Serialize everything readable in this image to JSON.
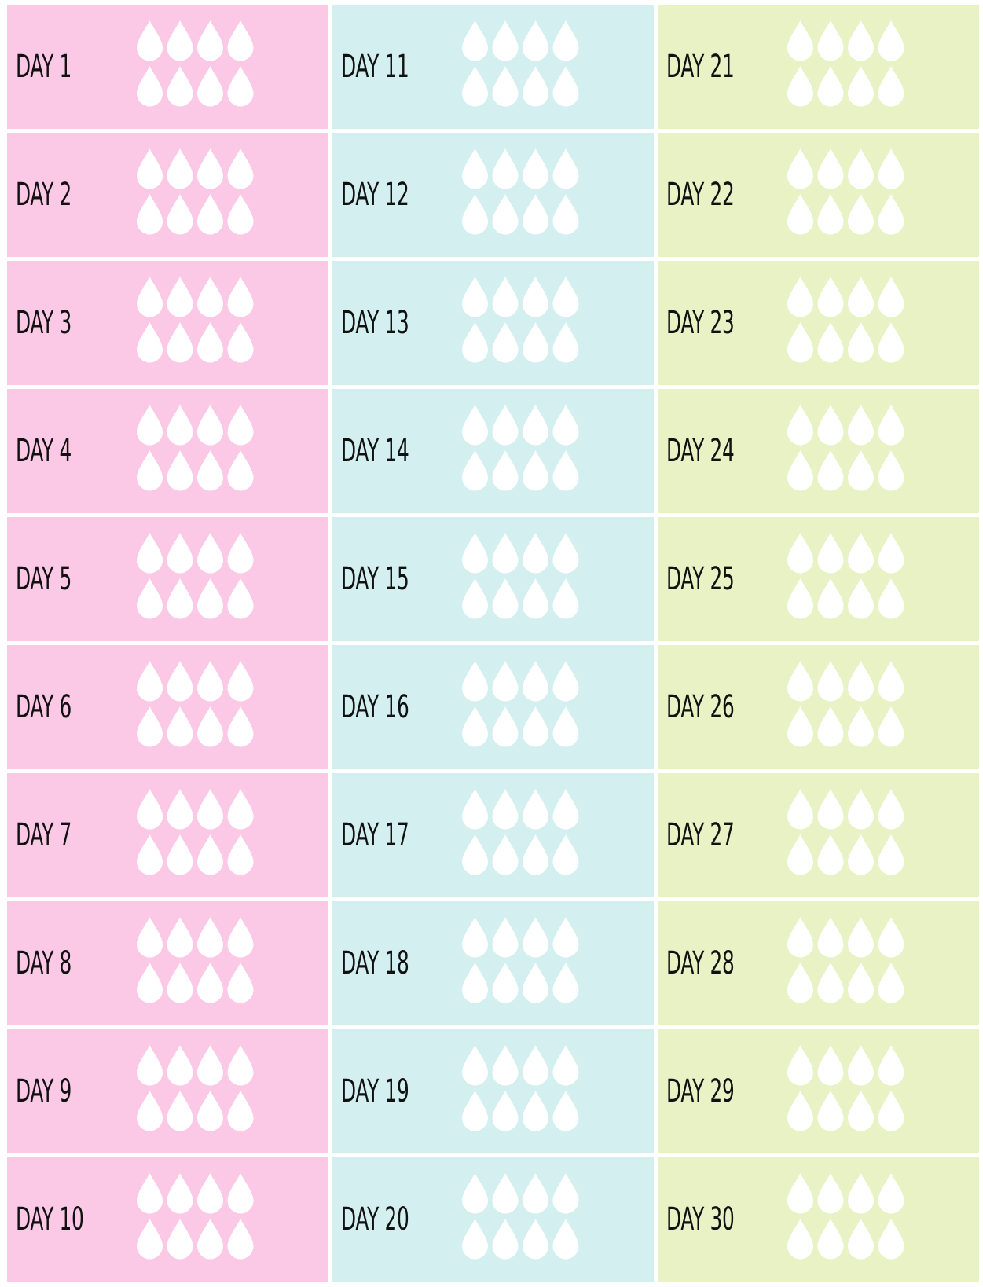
{
  "columns": [
    {
      "color": "#fbc8e5",
      "days": [
        "DAY 1",
        "DAY 2",
        "DAY 3",
        "DAY 4",
        "DAY 5",
        "DAY 6",
        "DAY 7",
        "DAY 8",
        "DAY 9",
        "DAY 10"
      ]
    },
    {
      "color": "#d3eff0",
      "days": [
        "DAY 11",
        "DAY 12",
        "DAY 13",
        "DAY 14",
        "DAY 15",
        "DAY 16",
        "DAY 17",
        "DAY 18",
        "DAY 19",
        "DAY 20"
      ]
    },
    {
      "color": "#e8f2c5",
      "days": [
        "DAY 21",
        "DAY 22",
        "DAY 23",
        "DAY 24",
        "DAY 25",
        "DAY 26",
        "DAY 27",
        "DAY 28",
        "DAY 29",
        "DAY 30"
      ]
    }
  ]
}
